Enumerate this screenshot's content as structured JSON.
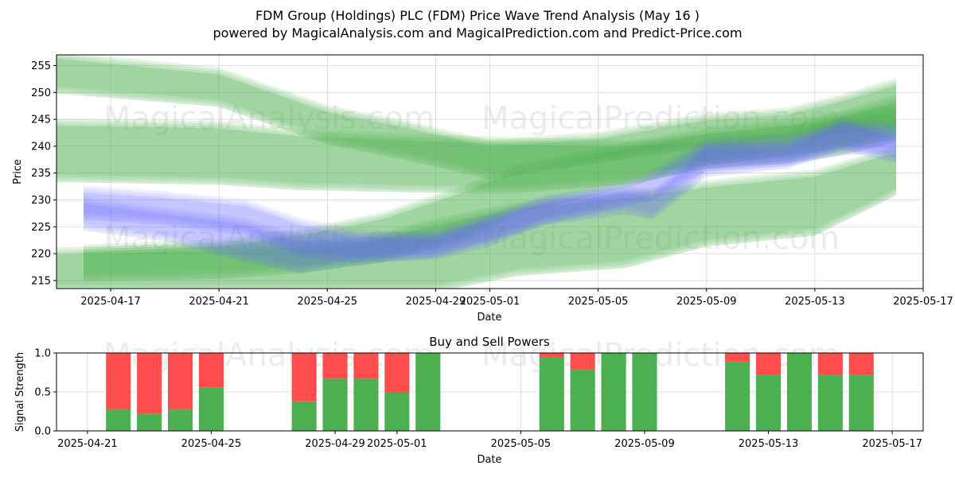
{
  "header": {
    "title_line1": "FDM Group (Holdings) PLC (FDM) Price Wave Trend Analysis (May 16 )",
    "title_line2": "powered by MagicalAnalysis.com and MagicalPrediction.com and Predict-Price.com"
  },
  "watermarks": [
    "MagicalAnalysis.com",
    "MagicalPrediction.com"
  ],
  "chart_data": [
    {
      "type": "area",
      "title": "",
      "xlabel": "Date",
      "ylabel": "Price",
      "x_range": [
        "2025-04-15",
        "2025-05-17"
      ],
      "ylim": [
        213.5,
        257
      ],
      "x_ticks": [
        {
          "date": "2025-04-17",
          "label": "2025-04-17"
        },
        {
          "date": "2025-04-21",
          "label": "2025-04-21"
        },
        {
          "date": "2025-04-25",
          "label": "2025-04-25"
        },
        {
          "date": "2025-04-29",
          "label": "2025-04-29"
        },
        {
          "date": "2025-05-01",
          "label": "2025-05-01"
        },
        {
          "date": "2025-05-05",
          "label": "2025-05-05"
        },
        {
          "date": "2025-05-09",
          "label": "2025-05-09"
        },
        {
          "date": "2025-05-13",
          "label": "2025-05-13"
        },
        {
          "date": "2025-05-17",
          "label": "2025-05-17"
        }
      ],
      "y_ticks": [
        215,
        220,
        225,
        230,
        235,
        240,
        245,
        250,
        255
      ],
      "grid": true,
      "colors": {
        "green_band": "#4caf50",
        "blue_band": "#6464ff"
      },
      "series": [
        {
          "name": "green-wave-upper",
          "color": "#4caf50",
          "x": [
            "2025-04-15",
            "2025-04-21",
            "2025-04-25",
            "2025-04-28",
            "2025-05-01",
            "2025-05-05",
            "2025-05-09",
            "2025-05-12",
            "2025-05-14",
            "2025-05-16"
          ],
          "upper": [
            257,
            254,
            247,
            244,
            240.5,
            242,
            245.5,
            246.5,
            249,
            252
          ],
          "lower": [
            250.5,
            248,
            241,
            238,
            234.5,
            237.5,
            240.5,
            241.5,
            243,
            244
          ]
        },
        {
          "name": "green-wave-mid",
          "color": "#4caf50",
          "x": [
            "2025-04-15",
            "2025-04-21",
            "2025-04-24",
            "2025-04-29",
            "2025-05-02",
            "2025-05-06",
            "2025-05-09",
            "2025-05-12",
            "2025-05-14",
            "2025-05-16"
          ],
          "upper": [
            244.5,
            244,
            242.5,
            241.5,
            241,
            240.5,
            241.5,
            243,
            246,
            249
          ],
          "lower": [
            234,
            233.5,
            232.5,
            232,
            232,
            233.5,
            236.5,
            237.5,
            239,
            241.5
          ]
        },
        {
          "name": "green-wave-lower",
          "color": "#4caf50",
          "x": [
            "2025-04-15",
            "2025-04-19",
            "2025-04-22",
            "2025-04-26",
            "2025-04-29",
            "2025-05-02",
            "2025-05-06",
            "2025-05-09",
            "2025-05-13",
            "2025-05-16"
          ],
          "upper": [
            220.5,
            221,
            221.5,
            222,
            226,
            229,
            231,
            233,
            235,
            239.5
          ],
          "lower": [
            213.5,
            213.5,
            213.5,
            213.5,
            213.5,
            216.5,
            218,
            222,
            224,
            231.5
          ]
        },
        {
          "name": "green-wave-rising",
          "color": "#4caf50",
          "x": [
            "2025-04-16",
            "2025-04-21",
            "2025-04-24",
            "2025-04-27",
            "2025-04-30",
            "2025-05-02",
            "2025-05-06",
            "2025-05-09",
            "2025-05-13",
            "2025-05-16"
          ],
          "upper": [
            221,
            222,
            224,
            227,
            232,
            236,
            240,
            243,
            245,
            247
          ],
          "lower": [
            215.5,
            216,
            217,
            219,
            223,
            228,
            233,
            237,
            239.5,
            242
          ]
        },
        {
          "name": "blue-wave-1",
          "color": "#6464ff",
          "x": [
            "2025-04-16",
            "2025-04-19",
            "2025-04-22",
            "2025-04-24",
            "2025-04-26",
            "2025-04-29",
            "2025-05-01",
            "2025-05-03",
            "2025-05-06",
            "2025-05-07",
            "2025-05-09",
            "2025-05-12",
            "2025-05-14",
            "2025-05-16"
          ],
          "upper": [
            232,
            231,
            229.5,
            226,
            224,
            223,
            226.5,
            230,
            232,
            231,
            240,
            240,
            245,
            242
          ],
          "lower": [
            227,
            226,
            224,
            220,
            219,
            219.5,
            222,
            226,
            228,
            227,
            235,
            236.5,
            240,
            237.5
          ]
        },
        {
          "name": "blue-wave-2",
          "color": "#6464ff",
          "x": [
            "2025-04-16",
            "2025-04-19",
            "2025-04-22",
            "2025-04-24",
            "2025-04-26",
            "2025-04-29",
            "2025-05-01",
            "2025-05-03",
            "2025-05-06",
            "2025-05-07",
            "2025-05-09",
            "2025-05-12",
            "2025-05-14",
            "2025-05-16"
          ],
          "upper": [
            230,
            228,
            226,
            223,
            223,
            224,
            227,
            230,
            233,
            235,
            241,
            241.5,
            244,
            244
          ],
          "lower": [
            225,
            223,
            219,
            217,
            218.5,
            220,
            223,
            226,
            229.5,
            230.5,
            236,
            237,
            239,
            239.5
          ]
        }
      ]
    },
    {
      "type": "bar",
      "title": "Buy and Sell Powers",
      "xlabel": "Date",
      "ylabel": "Signal Strength",
      "ylim": [
        0,
        1
      ],
      "y_ticks": [
        0.0,
        0.5,
        1.0
      ],
      "y_tick_labels": [
        "0.0",
        "0.5",
        "1.0"
      ],
      "x_range": [
        "2025-04-20",
        "2025-05-18"
      ],
      "x_ticks": [
        {
          "date": "2025-04-21",
          "label": "2025-04-21"
        },
        {
          "date": "2025-04-25",
          "label": "2025-04-25"
        },
        {
          "date": "2025-04-29",
          "label": "2025-04-29"
        },
        {
          "date": "2025-05-01",
          "label": "2025-05-01"
        },
        {
          "date": "2025-05-05",
          "label": "2025-05-05"
        },
        {
          "date": "2025-05-09",
          "label": "2025-05-09"
        },
        {
          "date": "2025-05-13",
          "label": "2025-05-13"
        },
        {
          "date": "2025-05-17",
          "label": "2025-05-17"
        }
      ],
      "colors": {
        "buy": "#4caf50",
        "sell": "#ff4d4d"
      },
      "categories": [
        "2025-04-22",
        "2025-04-23",
        "2025-04-24",
        "2025-04-25",
        "2025-04-28",
        "2025-04-29",
        "2025-04-30",
        "2025-05-01",
        "2025-05-02",
        "2025-05-06",
        "2025-05-07",
        "2025-05-08",
        "2025-05-09",
        "2025-05-12",
        "2025-05-13",
        "2025-05-14",
        "2025-05-15",
        "2025-05-16"
      ],
      "series": [
        {
          "name": "Buy",
          "values": [
            0.28,
            0.22,
            0.28,
            0.56,
            0.38,
            0.67,
            0.67,
            0.5,
            1.0,
            0.94,
            0.79,
            1.0,
            1.0,
            0.89,
            0.72,
            1.0,
            0.72,
            0.72
          ]
        },
        {
          "name": "Sell",
          "values": [
            0.72,
            0.78,
            0.72,
            0.44,
            0.62,
            0.33,
            0.33,
            0.5,
            0.0,
            0.06,
            0.21,
            0.0,
            0.0,
            0.11,
            0.28,
            0.0,
            0.28,
            0.28
          ]
        }
      ]
    }
  ]
}
